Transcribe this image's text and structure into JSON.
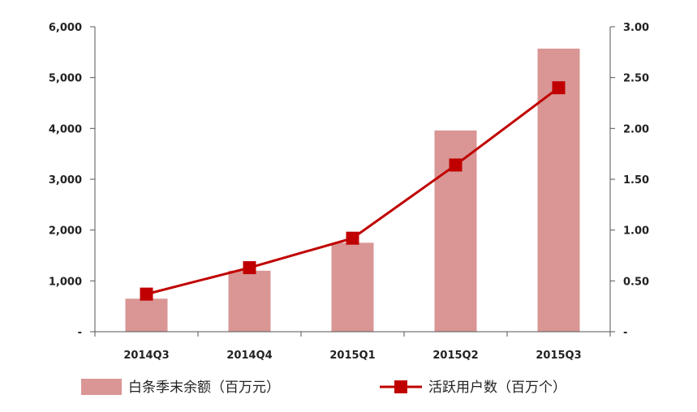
{
  "chart_data": {
    "type": "bar+line",
    "categories": [
      "2014Q3",
      "2014Q4",
      "2015Q1",
      "2015Q2",
      "2015Q3"
    ],
    "series": [
      {
        "name": "白条季末余额（百万元）",
        "type": "bar",
        "axis": "left",
        "values": [
          650,
          1200,
          1750,
          3960,
          5570
        ],
        "color": "#d99694"
      },
      {
        "name": "活跃用户数（百万个）",
        "type": "line",
        "axis": "right",
        "values": [
          0.37,
          0.63,
          0.92,
          1.64,
          2.4
        ],
        "color": "#c00000"
      }
    ],
    "y_left": {
      "range": [
        0,
        6000
      ],
      "ticks": [
        0,
        1000,
        2000,
        3000,
        4000,
        5000,
        6000
      ],
      "tick_labels": [
        "-",
        "1,000",
        "2,000",
        "3,000",
        "4,000",
        "5,000",
        "6,000"
      ]
    },
    "y_right": {
      "range": [
        0,
        3
      ],
      "ticks": [
        0,
        0.5,
        1,
        1.5,
        2,
        2.5,
        3
      ],
      "tick_labels": [
        "-",
        "0.50",
        "1.00",
        "1.50",
        "2.00",
        "2.50",
        "3.00"
      ]
    },
    "title": "",
    "grid": false,
    "legend_position": "bottom"
  }
}
